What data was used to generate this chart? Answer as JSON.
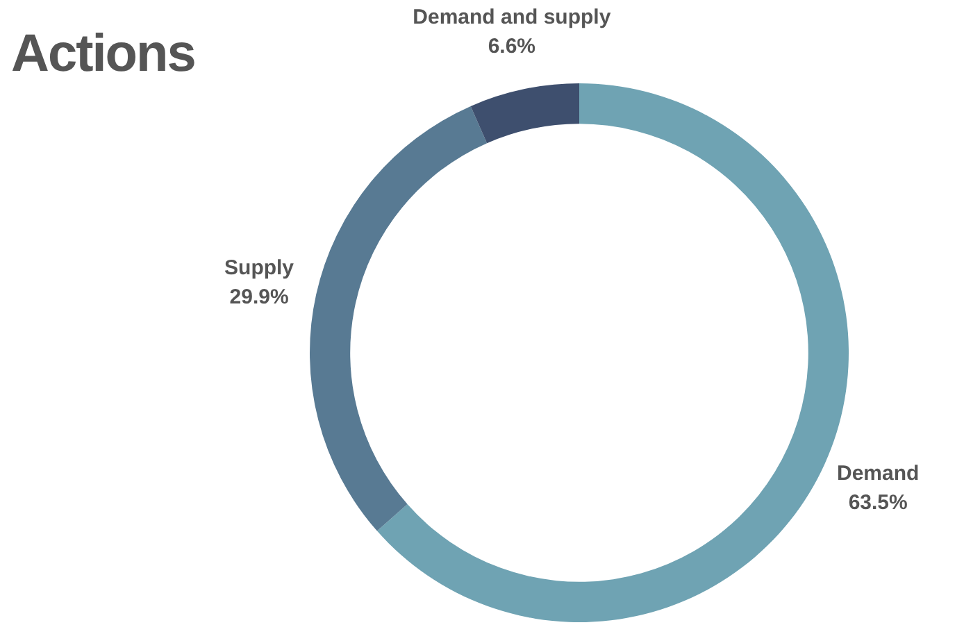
{
  "chart_data": {
    "type": "donut",
    "title": "Actions",
    "categories": [
      "Demand",
      "Supply",
      "Demand and supply"
    ],
    "values": [
      63.5,
      29.9,
      6.6
    ],
    "value_labels": [
      "63.5%",
      "29.9%",
      "6.6%"
    ],
    "colors": [
      "#6fa3b3",
      "#587a93",
      "#3e4f6e"
    ]
  }
}
